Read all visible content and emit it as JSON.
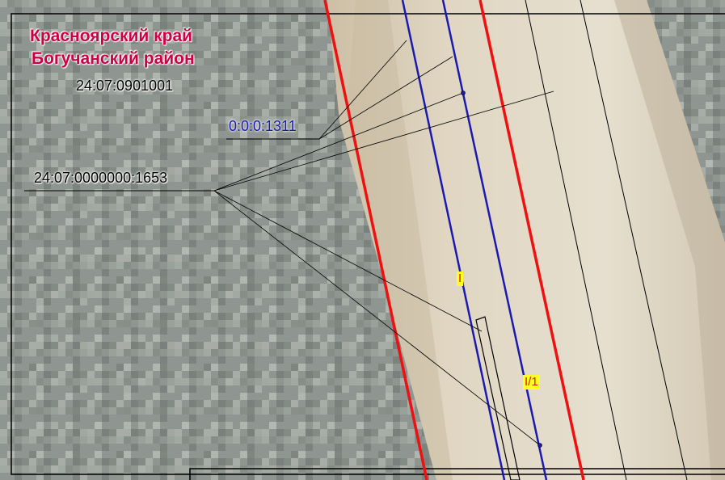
{
  "labels": {
    "region_line1": "Красноярский край",
    "region_line2": "Богучанский район",
    "cadastral_block": "24:07:0901001",
    "parcel_blue": "0:0:0:1311",
    "parcel_black": "24:07:0000000:1653",
    "zone_1": "I",
    "zone_2": "I/1"
  },
  "colors": {
    "region_text": "#cc0044",
    "boundary_red": "#ee1111",
    "boundary_blue": "#1a1ab0",
    "leader_lines": "#000000",
    "zone_label_bg": "#ffff22",
    "road_surface": "#dcd2bc",
    "forest": "#8e9590"
  }
}
